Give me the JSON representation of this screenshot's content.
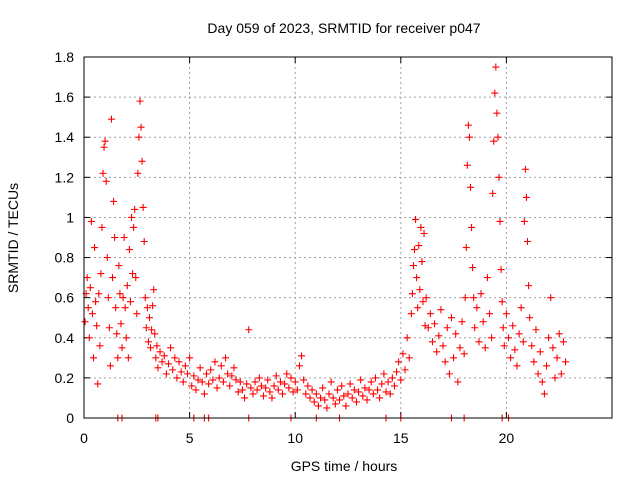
{
  "chart_data": {
    "type": "scatter",
    "title": "Day 059 of 2023, SRMTID for receiver p047",
    "xlabel": "GPS time / hours",
    "ylabel": "SRMTID / TECUs",
    "xlim": [
      0,
      25
    ],
    "ylim": [
      0,
      1.8
    ],
    "xticks": [
      "0",
      "5",
      "10",
      "15",
      "20"
    ],
    "yticks": [
      "0",
      "0.2",
      "0.4",
      "0.6",
      "0.8",
      "1",
      "1.2",
      "1.4",
      "1.6",
      "1.8"
    ],
    "grid": true,
    "marker": "+",
    "color": "#ff0000",
    "series": [
      {
        "name": "SRMTID",
        "points": [
          [
            0.05,
            0.48
          ],
          [
            0.1,
            0.62
          ],
          [
            0.15,
            0.7
          ],
          [
            0.2,
            0.55
          ],
          [
            0.25,
            0.4
          ],
          [
            0.3,
            0.65
          ],
          [
            0.35,
            0.98
          ],
          [
            0.4,
            0.52
          ],
          [
            0.45,
            0.3
          ],
          [
            0.5,
            0.85
          ],
          [
            0.55,
            0.58
          ],
          [
            0.6,
            0.46
          ],
          [
            0.65,
            0.17
          ],
          [
            0.7,
            0.62
          ],
          [
            0.75,
            0.36
          ],
          [
            0.8,
            0.72
          ],
          [
            0.85,
            0.95
          ],
          [
            0.9,
            1.22
          ],
          [
            0.95,
            1.35
          ],
          [
            1.0,
            1.38
          ],
          [
            1.05,
            1.18
          ],
          [
            1.1,
            0.8
          ],
          [
            1.15,
            0.6
          ],
          [
            1.2,
            0.45
          ],
          [
            1.25,
            0.26
          ],
          [
            1.3,
            1.49
          ],
          [
            1.35,
            0.7
          ],
          [
            1.4,
            1.08
          ],
          [
            1.45,
            0.9
          ],
          [
            1.5,
            0.55
          ],
          [
            1.55,
            0.42
          ],
          [
            1.6,
            0.3
          ],
          [
            1.65,
            0.76
          ],
          [
            1.7,
            0.62
          ],
          [
            1.75,
            0.47
          ],
          [
            1.8,
            0.35
          ],
          [
            1.85,
            0.6
          ],
          [
            1.9,
            0.9
          ],
          [
            1.95,
            0.55
          ],
          [
            2.0,
            0.4
          ],
          [
            2.05,
            0.66
          ],
          [
            2.1,
            0.3
          ],
          [
            2.15,
            0.84
          ],
          [
            2.2,
            0.58
          ],
          [
            2.25,
            1.0
          ],
          [
            2.3,
            0.72
          ],
          [
            2.35,
            0.95
          ],
          [
            2.4,
            1.04
          ],
          [
            2.45,
            0.7
          ],
          [
            2.5,
            0.52
          ],
          [
            2.55,
            1.22
          ],
          [
            2.6,
            1.4
          ],
          [
            2.65,
            1.58
          ],
          [
            2.7,
            1.45
          ],
          [
            2.75,
            1.28
          ],
          [
            2.8,
            1.05
          ],
          [
            2.85,
            0.88
          ],
          [
            2.9,
            0.6
          ],
          [
            2.95,
            0.45
          ],
          [
            3.0,
            0.55
          ],
          [
            3.05,
            0.38
          ],
          [
            3.1,
            0.5
          ],
          [
            3.15,
            0.35
          ],
          [
            3.2,
            0.44
          ],
          [
            3.25,
            0.56
          ],
          [
            3.3,
            0.64
          ],
          [
            3.35,
            0.42
          ],
          [
            3.4,
            0.3
          ],
          [
            3.45,
            0.36
          ],
          [
            3.5,
            0.25
          ],
          [
            3.6,
            0.33
          ],
          [
            3.7,
            0.28
          ],
          [
            3.8,
            0.31
          ],
          [
            3.9,
            0.22
          ],
          [
            4.0,
            0.27
          ],
          [
            4.1,
            0.35
          ],
          [
            4.2,
            0.24
          ],
          [
            4.3,
            0.3
          ],
          [
            4.4,
            0.2
          ],
          [
            4.5,
            0.28
          ],
          [
            4.6,
            0.23
          ],
          [
            4.7,
            0.18
          ],
          [
            4.8,
            0.26
          ],
          [
            4.9,
            0.22
          ],
          [
            5.0,
            0.3
          ],
          [
            5.1,
            0.16
          ],
          [
            5.2,
            0.21
          ],
          [
            5.3,
            0.14
          ],
          [
            5.4,
            0.19
          ],
          [
            5.5,
            0.25
          ],
          [
            5.6,
            0.18
          ],
          [
            5.7,
            0.12
          ],
          [
            5.8,
            0.22
          ],
          [
            5.9,
            0.17
          ],
          [
            6.0,
            0.24
          ],
          [
            6.1,
            0.19
          ],
          [
            6.2,
            0.28
          ],
          [
            6.3,
            0.15
          ],
          [
            6.4,
            0.2
          ],
          [
            6.5,
            0.26
          ],
          [
            6.6,
            0.18
          ],
          [
            6.7,
            0.3
          ],
          [
            6.8,
            0.22
          ],
          [
            6.9,
            0.16
          ],
          [
            7.0,
            0.21
          ],
          [
            7.1,
            0.25
          ],
          [
            7.2,
            0.19
          ],
          [
            7.3,
            0.13
          ],
          [
            7.4,
            0.18
          ],
          [
            7.5,
            0.14
          ],
          [
            7.6,
            0.1
          ],
          [
            7.7,
            0.17
          ],
          [
            7.8,
            0.44
          ],
          [
            7.9,
            0.15
          ],
          [
            8.0,
            0.12
          ],
          [
            8.1,
            0.18
          ],
          [
            8.2,
            0.14
          ],
          [
            8.3,
            0.2
          ],
          [
            8.4,
            0.16
          ],
          [
            8.5,
            0.11
          ],
          [
            8.6,
            0.15
          ],
          [
            8.7,
            0.19
          ],
          [
            8.8,
            0.13
          ],
          [
            8.9,
            0.1
          ],
          [
            9.0,
            0.16
          ],
          [
            9.1,
            0.21
          ],
          [
            9.2,
            0.14
          ],
          [
            9.3,
            0.18
          ],
          [
            9.4,
            0.12
          ],
          [
            9.5,
            0.17
          ],
          [
            9.6,
            0.22
          ],
          [
            9.7,
            0.15
          ],
          [
            9.8,
            0.2
          ],
          [
            9.9,
            0.13
          ],
          [
            10.0,
            0.18
          ],
          [
            10.1,
            0.14
          ],
          [
            10.2,
            0.26
          ],
          [
            10.3,
            0.31
          ],
          [
            10.4,
            0.19
          ],
          [
            10.5,
            0.12
          ],
          [
            10.6,
            0.16
          ],
          [
            10.7,
            0.1
          ],
          [
            10.8,
            0.14
          ],
          [
            10.9,
            0.08
          ],
          [
            11.0,
            0.12
          ],
          [
            11.1,
            0.06
          ],
          [
            11.2,
            0.1
          ],
          [
            11.3,
            0.15
          ],
          [
            11.4,
            0.09
          ],
          [
            11.5,
            0.05
          ],
          [
            11.6,
            0.12
          ],
          [
            11.7,
            0.18
          ],
          [
            11.8,
            0.1
          ],
          [
            11.9,
            0.07
          ],
          [
            12.0,
            0.14
          ],
          [
            12.1,
            0.09
          ],
          [
            12.2,
            0.16
          ],
          [
            12.3,
            0.11
          ],
          [
            12.4,
            0.06
          ],
          [
            12.5,
            0.12
          ],
          [
            12.6,
            0.17
          ],
          [
            12.7,
            0.1
          ],
          [
            12.8,
            0.14
          ],
          [
            12.9,
            0.08
          ],
          [
            13.0,
            0.13
          ],
          [
            13.1,
            0.19
          ],
          [
            13.2,
            0.11
          ],
          [
            13.3,
            0.15
          ],
          [
            13.4,
            0.09
          ],
          [
            13.5,
            0.14
          ],
          [
            13.6,
            0.18
          ],
          [
            13.7,
            0.12
          ],
          [
            13.8,
            0.2
          ],
          [
            13.9,
            0.14
          ],
          [
            14.0,
            0.1
          ],
          [
            14.1,
            0.17
          ],
          [
            14.2,
            0.22
          ],
          [
            14.3,
            0.13
          ],
          [
            14.4,
            0.18
          ],
          [
            14.5,
            0.12
          ],
          [
            14.6,
            0.2
          ],
          [
            14.7,
            0.16
          ],
          [
            14.8,
            0.23
          ],
          [
            14.9,
            0.28
          ],
          [
            15.0,
            0.19
          ],
          [
            15.1,
            0.32
          ],
          [
            15.2,
            0.24
          ],
          [
            15.3,
            0.4
          ],
          [
            15.4,
            0.3
          ],
          [
            15.5,
            0.52
          ],
          [
            15.55,
            0.62
          ],
          [
            15.6,
            0.76
          ],
          [
            15.65,
            0.84
          ],
          [
            15.7,
            0.99
          ],
          [
            15.75,
            0.7
          ],
          [
            15.8,
            0.55
          ],
          [
            15.85,
            0.86
          ],
          [
            15.9,
            0.64
          ],
          [
            15.95,
            0.95
          ],
          [
            16.0,
            0.78
          ],
          [
            16.05,
            0.58
          ],
          [
            16.1,
            0.92
          ],
          [
            16.15,
            0.46
          ],
          [
            16.2,
            0.6
          ],
          [
            16.3,
            0.45
          ],
          [
            16.4,
            0.52
          ],
          [
            16.5,
            0.38
          ],
          [
            16.6,
            0.47
          ],
          [
            16.7,
            0.33
          ],
          [
            16.8,
            0.41
          ],
          [
            16.9,
            0.54
          ],
          [
            17.0,
            0.36
          ],
          [
            17.1,
            0.28
          ],
          [
            17.2,
            0.45
          ],
          [
            17.3,
            0.22
          ],
          [
            17.4,
            0.5
          ],
          [
            17.5,
            0.3
          ],
          [
            17.6,
            0.42
          ],
          [
            17.7,
            0.18
          ],
          [
            17.8,
            0.35
          ],
          [
            17.9,
            0.48
          ],
          [
            18.0,
            0.32
          ],
          [
            18.05,
            0.6
          ],
          [
            18.1,
            0.85
          ],
          [
            18.15,
            1.26
          ],
          [
            18.2,
            1.46
          ],
          [
            18.25,
            1.4
          ],
          [
            18.3,
            1.15
          ],
          [
            18.35,
            0.95
          ],
          [
            18.4,
            0.75
          ],
          [
            18.45,
            0.6
          ],
          [
            18.5,
            0.45
          ],
          [
            18.6,
            0.55
          ],
          [
            18.7,
            0.38
          ],
          [
            18.8,
            0.62
          ],
          [
            18.9,
            0.48
          ],
          [
            19.0,
            0.35
          ],
          [
            19.1,
            0.7
          ],
          [
            19.2,
            0.52
          ],
          [
            19.3,
            0.4
          ],
          [
            19.35,
            1.12
          ],
          [
            19.4,
            1.38
          ],
          [
            19.45,
            1.62
          ],
          [
            19.5,
            1.75
          ],
          [
            19.55,
            1.52
          ],
          [
            19.6,
            1.4
          ],
          [
            19.65,
            1.2
          ],
          [
            19.7,
            0.98
          ],
          [
            19.75,
            0.74
          ],
          [
            19.8,
            0.58
          ],
          [
            19.85,
            0.45
          ],
          [
            19.9,
            0.36
          ],
          [
            20.0,
            0.52
          ],
          [
            20.1,
            0.4
          ],
          [
            20.2,
            0.3
          ],
          [
            20.3,
            0.46
          ],
          [
            20.4,
            0.34
          ],
          [
            20.5,
            0.26
          ],
          [
            20.6,
            0.42
          ],
          [
            20.7,
            0.55
          ],
          [
            20.8,
            0.38
          ],
          [
            20.85,
            0.98
          ],
          [
            20.9,
            1.24
          ],
          [
            20.95,
            1.1
          ],
          [
            21.0,
            0.88
          ],
          [
            21.05,
            0.66
          ],
          [
            21.1,
            0.5
          ],
          [
            21.2,
            0.36
          ],
          [
            21.3,
            0.28
          ],
          [
            21.4,
            0.44
          ],
          [
            21.5,
            0.22
          ],
          [
            21.6,
            0.33
          ],
          [
            21.7,
            0.18
          ],
          [
            21.8,
            0.12
          ],
          [
            21.9,
            0.26
          ],
          [
            22.0,
            0.4
          ],
          [
            22.1,
            0.6
          ],
          [
            22.2,
            0.35
          ],
          [
            22.3,
            0.2
          ],
          [
            22.4,
            0.3
          ],
          [
            22.5,
            0.42
          ],
          [
            22.6,
            0.22
          ],
          [
            22.7,
            0.38
          ],
          [
            22.8,
            0.28
          ],
          [
            1.6,
            0.0
          ],
          [
            1.8,
            0.0
          ],
          [
            3.4,
            0.0
          ],
          [
            3.5,
            0.0
          ],
          [
            5.2,
            0.0
          ],
          [
            5.7,
            0.0
          ],
          [
            5.9,
            0.0
          ],
          [
            7.8,
            0.0
          ],
          [
            9.8,
            0.0
          ],
          [
            11.0,
            0.0
          ],
          [
            12.1,
            0.0
          ],
          [
            14.3,
            0.0
          ],
          [
            15.0,
            0.0
          ],
          [
            17.4,
            0.0
          ],
          [
            18.0,
            0.0
          ],
          [
            19.8,
            0.0
          ],
          [
            20.1,
            0.0
          ]
        ]
      }
    ]
  }
}
